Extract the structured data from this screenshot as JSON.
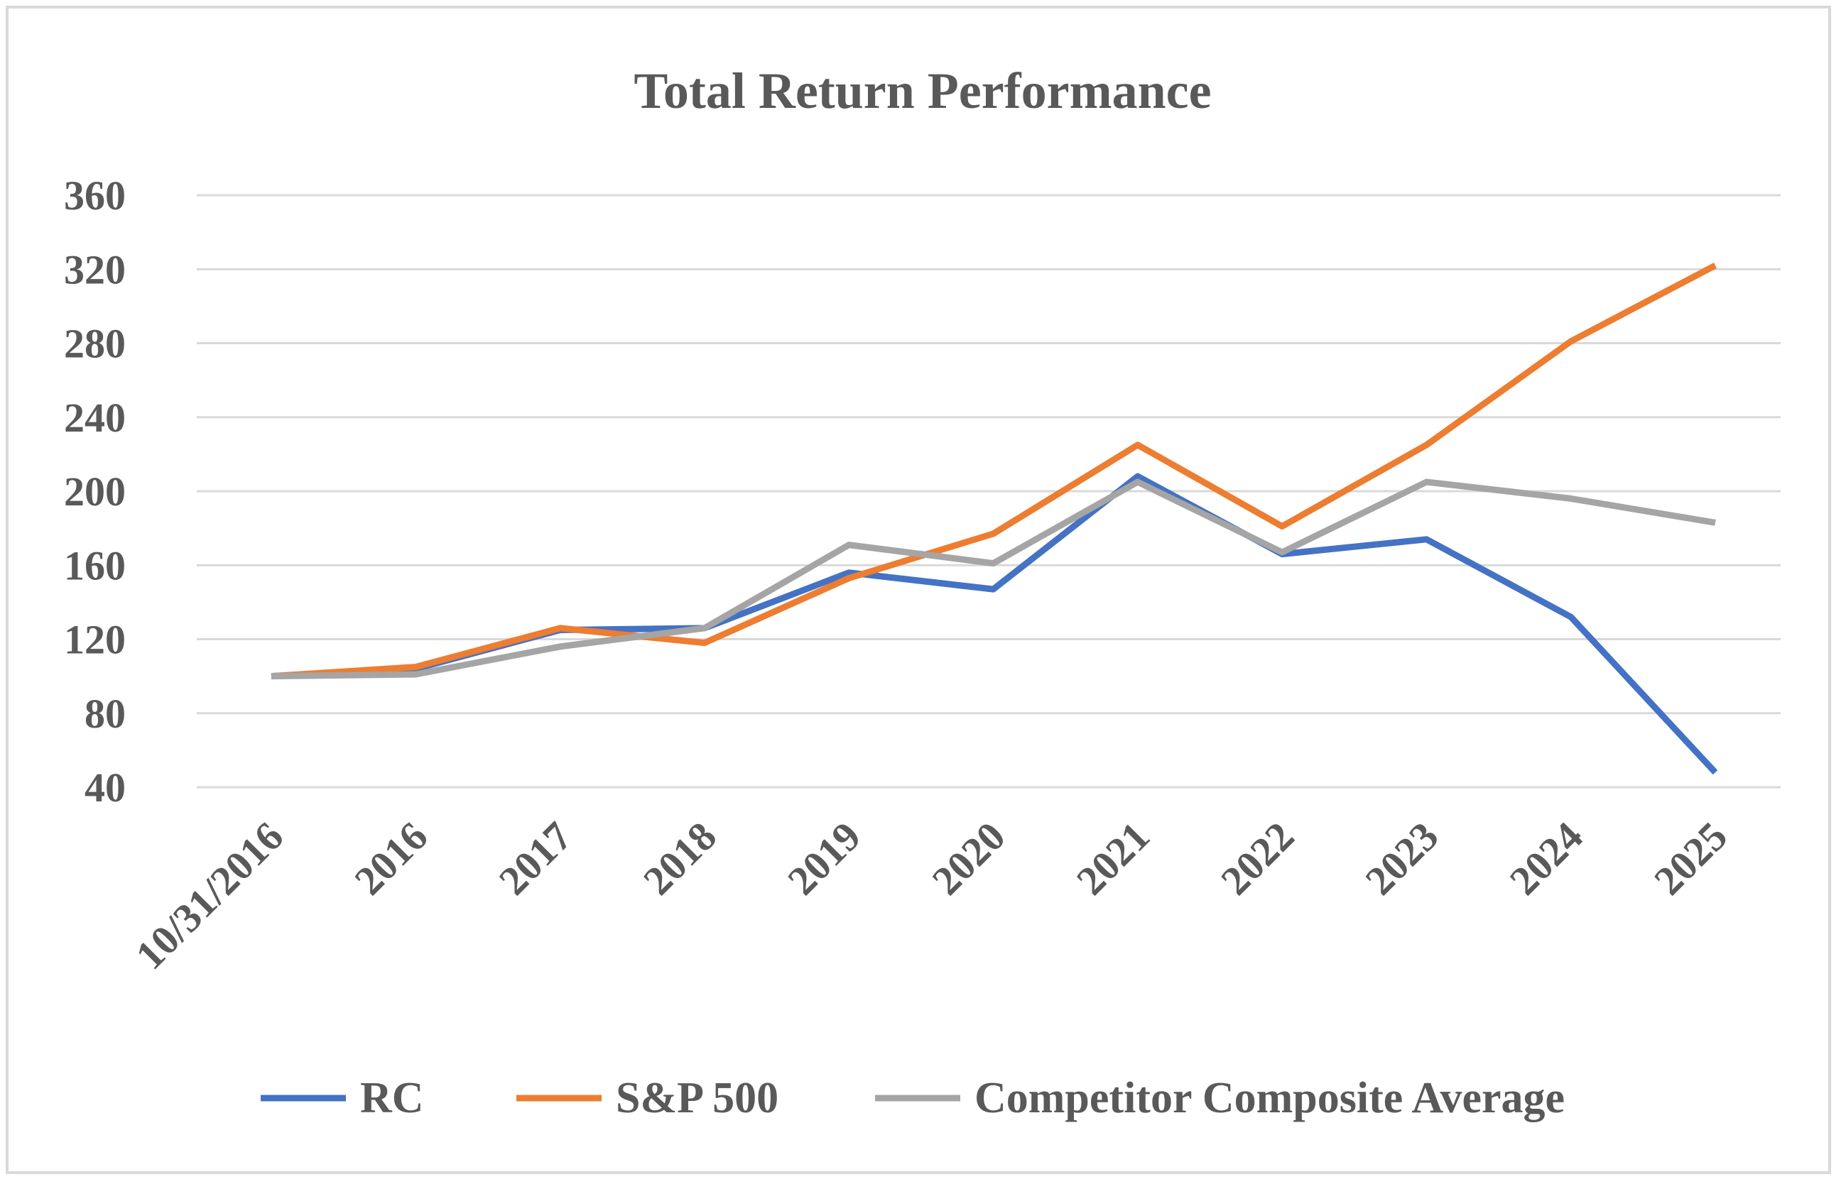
{
  "chart_data": {
    "type": "line",
    "title": "Total Return Performance",
    "xlabel": "",
    "ylabel": "",
    "ylim": [
      40,
      360
    ],
    "yticks": [
      40,
      80,
      120,
      160,
      200,
      240,
      280,
      320,
      360
    ],
    "grid": true,
    "legend_position": "bottom",
    "categories": [
      "10/31/2016",
      "2016",
      "2017",
      "2018",
      "2019",
      "2020",
      "2021",
      "2022",
      "2023",
      "2024",
      "2025"
    ],
    "series": [
      {
        "name": "RC",
        "color": "#4472c4",
        "values": [
          100,
          104,
          125,
          126,
          156,
          147,
          208,
          166,
          174,
          132,
          48
        ]
      },
      {
        "name": "S&P 500",
        "color": "#ed7d31",
        "values": [
          100,
          105,
          126,
          118,
          153,
          177,
          225,
          181,
          225,
          281,
          322
        ]
      },
      {
        "name": "Competitor Composite Average",
        "color": "#a5a5a5",
        "values": [
          100,
          101,
          116,
          126,
          171,
          161,
          205,
          167,
          205,
          196,
          183
        ]
      }
    ]
  }
}
